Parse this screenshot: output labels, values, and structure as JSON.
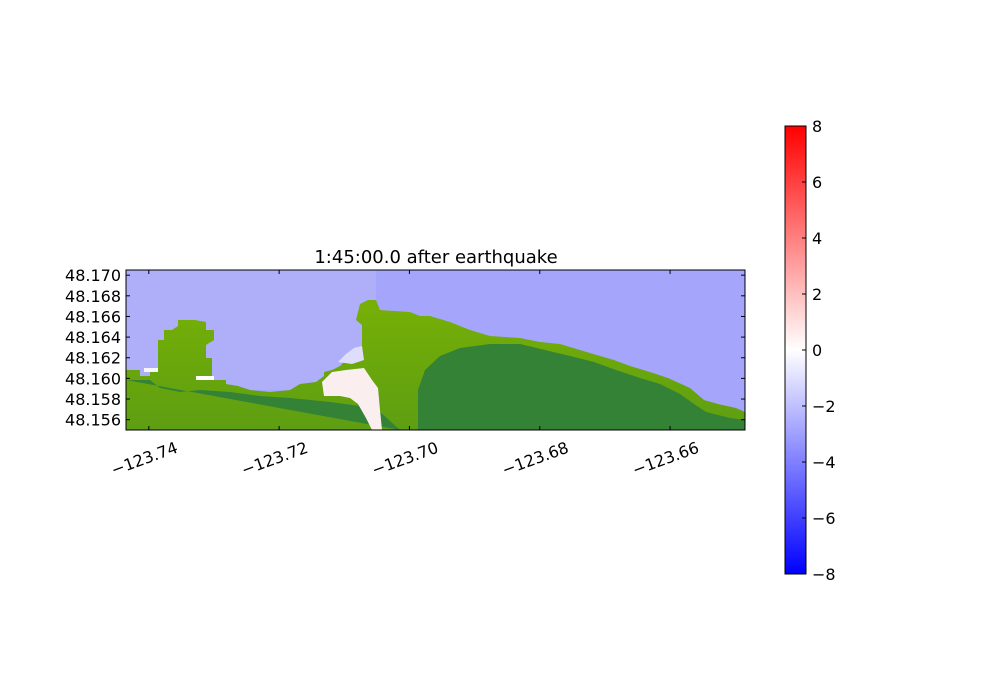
{
  "chart_data": {
    "type": "heatmap",
    "title": "1:45:00.0 after earthquake",
    "xlabel": "",
    "ylabel": "",
    "xlim": [
      -123.7435,
      -123.6485
    ],
    "ylim": [
      48.155,
      48.1705
    ],
    "x_ticks": [
      -123.74,
      -123.72,
      -123.7,
      -123.68,
      -123.66
    ],
    "x_tick_labels": [
      "−123.74",
      "−123.72",
      "−123.70",
      "−123.68",
      "−123.66"
    ],
    "y_ticks": [
      48.156,
      48.158,
      48.16,
      48.162,
      48.164,
      48.166,
      48.168,
      48.17
    ],
    "y_tick_labels": [
      "48.156",
      "48.158",
      "48.160",
      "48.162",
      "48.164",
      "48.166",
      "48.168",
      "48.170"
    ],
    "colorbar": {
      "range": [
        -8,
        8
      ],
      "ticks": [
        8,
        6,
        4,
        2,
        0,
        -2,
        -4,
        -6,
        -8
      ],
      "tick_labels": [
        "8",
        "6",
        "4",
        "2",
        "0",
        "−2",
        "−4",
        "−6",
        "−8"
      ],
      "colormap": "bwr",
      "colors": {
        "low": "#0000ff",
        "mid": "#ffffff",
        "high": "#ff0000"
      }
    },
    "land_colors": {
      "lowland": "#6fab08",
      "highland": "#348236"
    },
    "water_value_approx": -3.5,
    "grid": false
  }
}
